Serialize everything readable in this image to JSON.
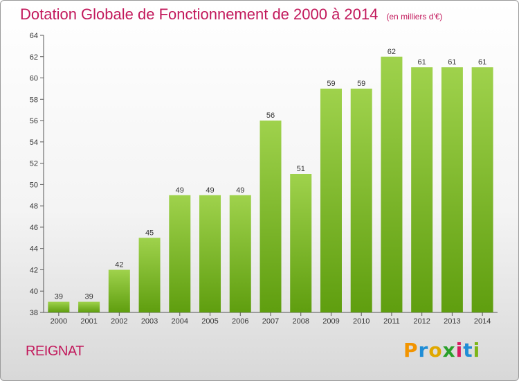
{
  "title": "Dotation Globale de Fonctionnement de 2000 à 2014",
  "unit": "(en milliers d'€)",
  "commune": "REIGNAT",
  "logo": {
    "letters": [
      "P",
      "r",
      "o",
      "x",
      "i",
      "t",
      "i"
    ],
    "colors": [
      "#f29400",
      "#1f8dd6",
      "#e0a800",
      "#2aa02a",
      "#d81b60",
      "#1f8dd6",
      "#7cb518"
    ]
  },
  "colors": {
    "bar_top": "#9fd24c",
    "bar_bottom": "#5f9e0f",
    "title": "#c2185b"
  },
  "chart_data": {
    "type": "bar",
    "categories": [
      "2000",
      "2001",
      "2002",
      "2003",
      "2004",
      "2005",
      "2006",
      "2007",
      "2008",
      "2009",
      "2010",
      "2011",
      "2012",
      "2013",
      "2014"
    ],
    "values": [
      39,
      39,
      42,
      45,
      49,
      49,
      49,
      56,
      51,
      59,
      59,
      62,
      61,
      61,
      61
    ],
    "ylim": [
      38,
      64
    ],
    "yticks": [
      38,
      40,
      42,
      44,
      46,
      48,
      50,
      52,
      54,
      56,
      58,
      60,
      62,
      64
    ],
    "grid": false
  }
}
